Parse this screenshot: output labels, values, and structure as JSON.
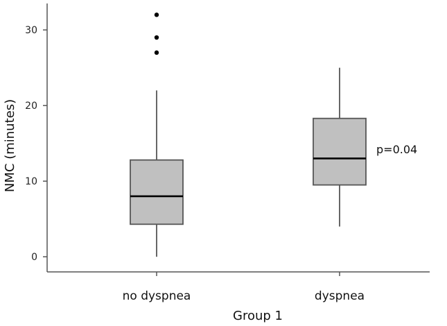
{
  "chart_data": {
    "type": "box",
    "xlabel": "Group 1",
    "ylabel": "NMC (minutes)",
    "ylim": [
      -2,
      33.5
    ],
    "yticks": [
      "0",
      "10",
      "20",
      "30"
    ],
    "grid": false,
    "categories": [
      "no dyspnea",
      "dyspnea"
    ],
    "boxes": [
      {
        "min": 0,
        "q1": 4.3,
        "median": 8,
        "q3": 12.8,
        "max": 22,
        "outliers": [
          27,
          29,
          32
        ]
      },
      {
        "min": 4,
        "q1": 9.5,
        "median": 13,
        "q3": 18.3,
        "max": 25,
        "outliers": []
      }
    ],
    "annotations": [
      {
        "text": "p=0.04"
      }
    ],
    "colors": {
      "box_fill": "#c0c0c0",
      "line": "#555555",
      "median": "#000000",
      "outlier": "#000000"
    }
  }
}
